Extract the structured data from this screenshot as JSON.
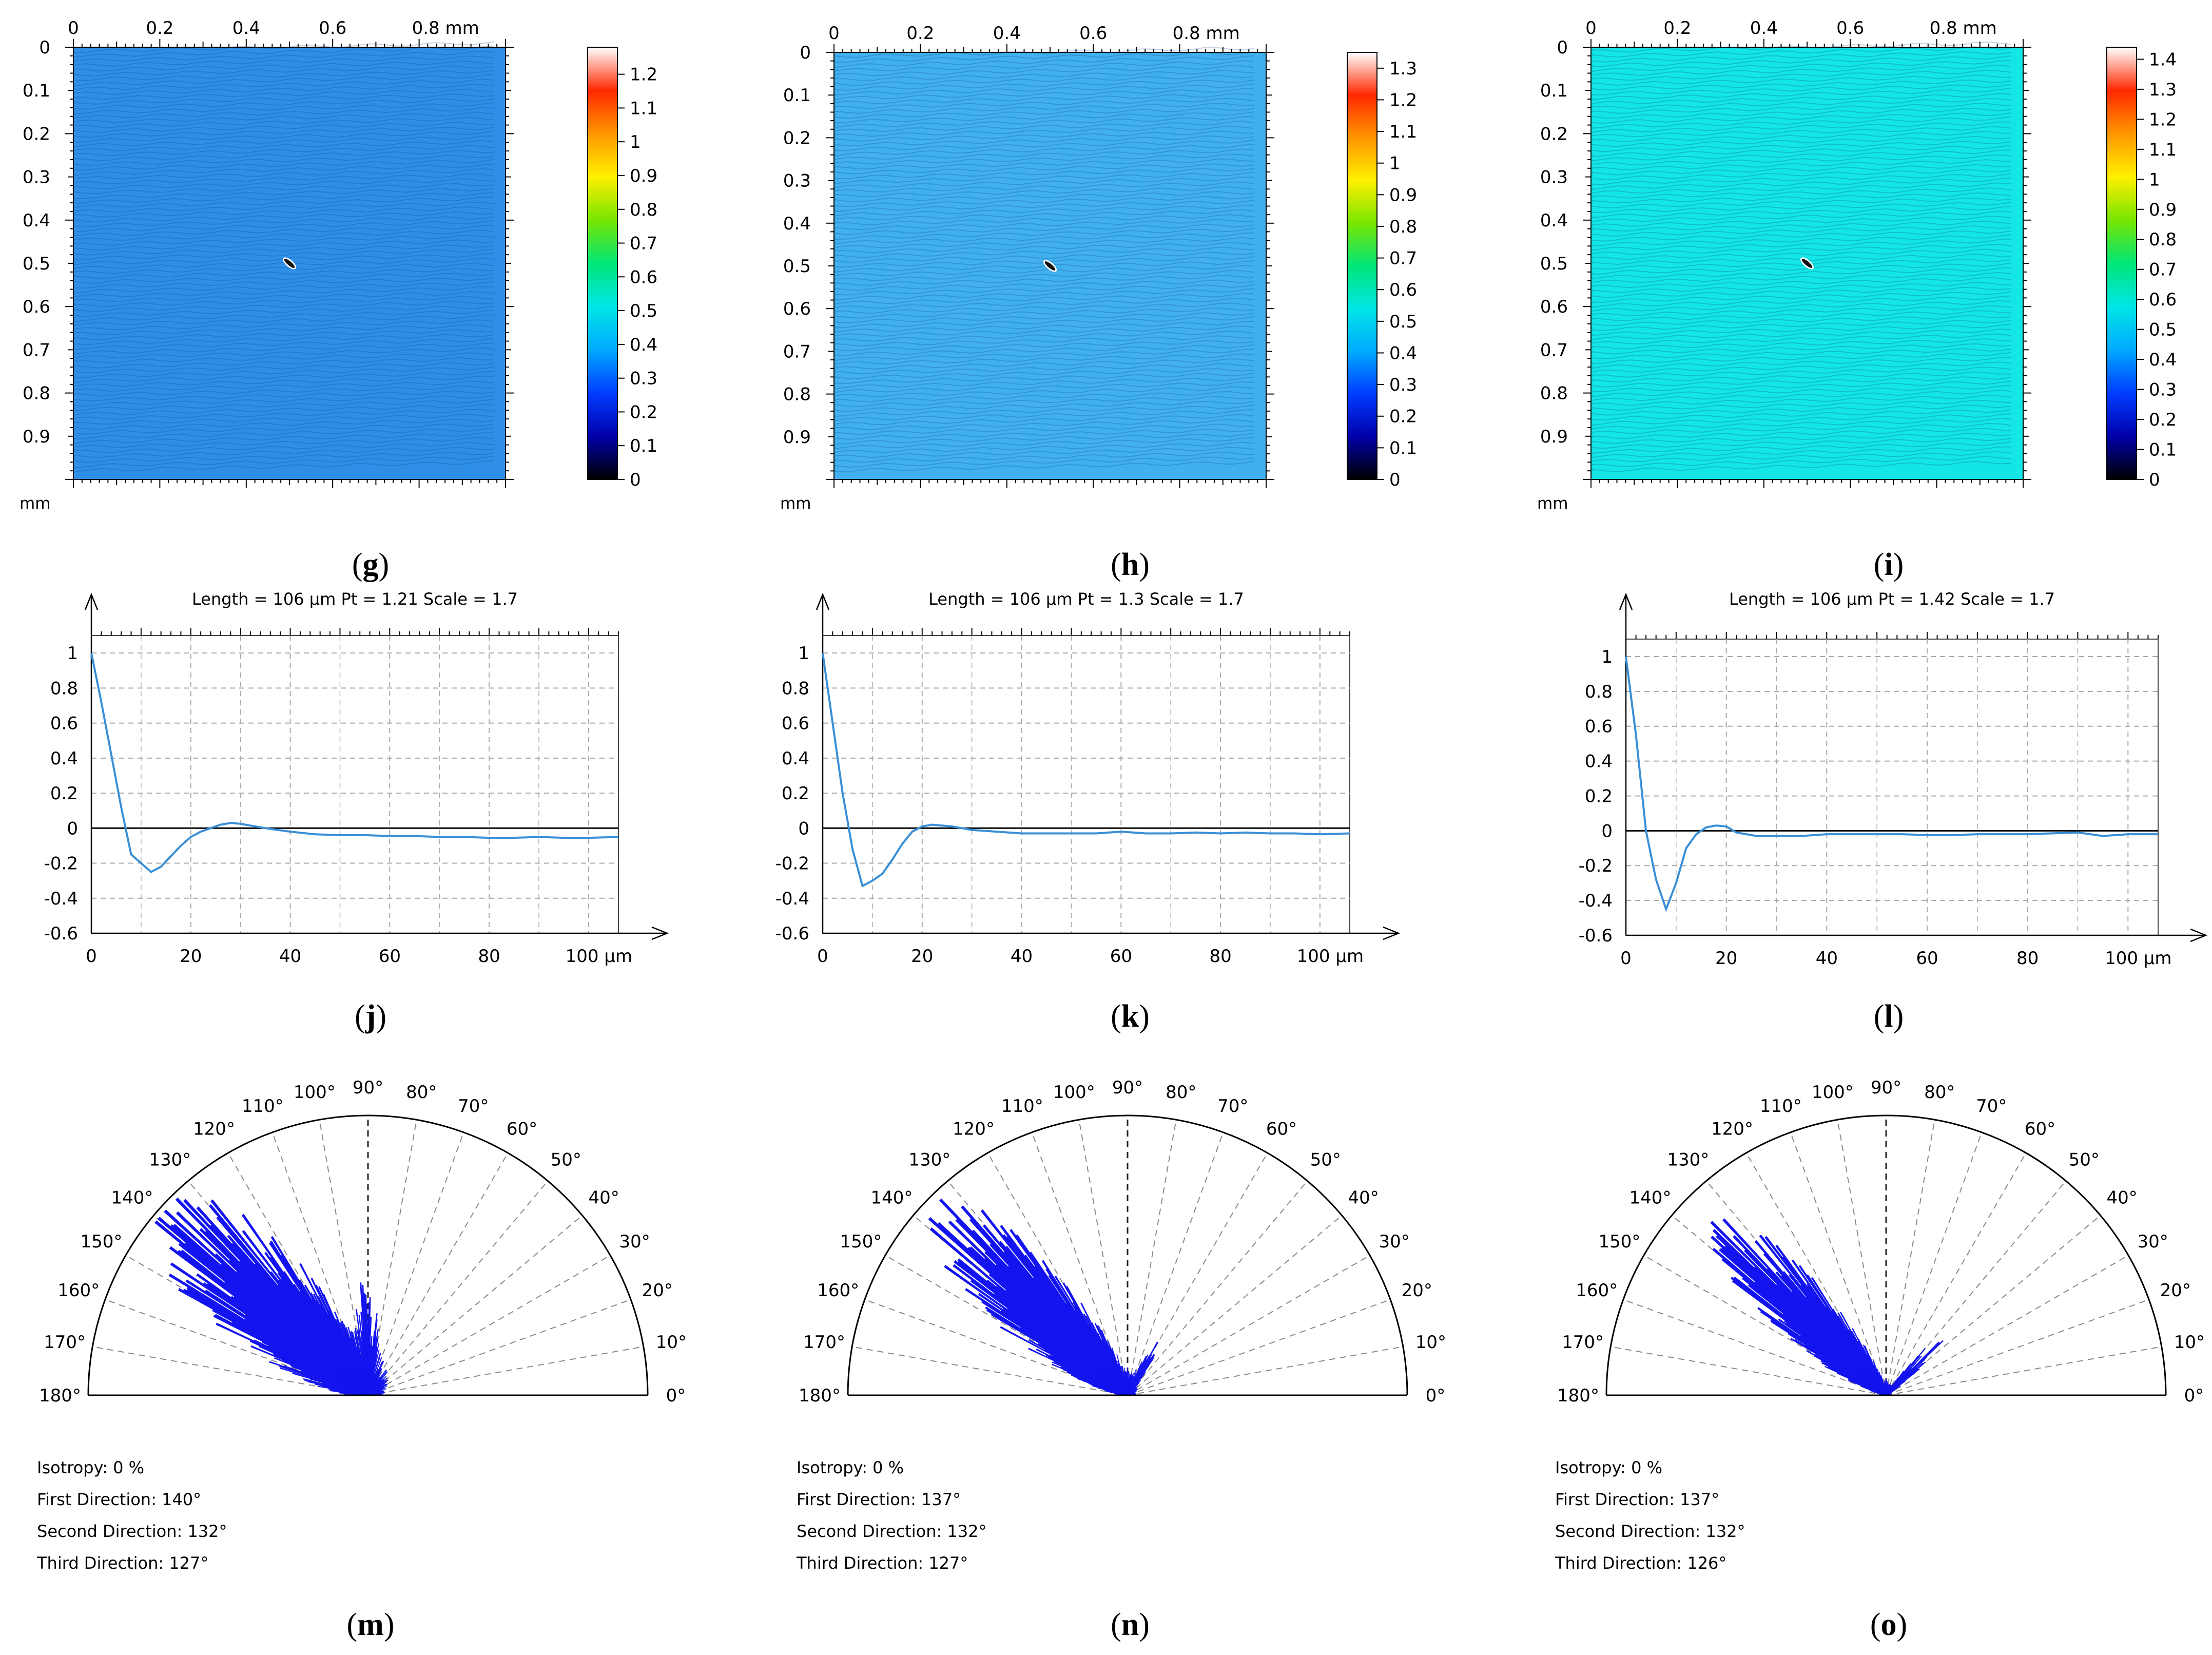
{
  "figure": {
    "captions": [
      "(g)",
      "(h)",
      "(i)",
      "(j)",
      "(k)",
      "(l)",
      "(m)",
      "(n)",
      "(o)"
    ],
    "caption_letters": [
      "g",
      "h",
      "i",
      "j",
      "k",
      "l",
      "m",
      "n",
      "o"
    ]
  },
  "colors": {
    "map_h": "#40b0ee",
    "map_i": "#14e6e6",
    "map_g": "#2f8fe6",
    "profile_line": "#3a8fd6",
    "rose_fill": "#1414f0",
    "grid": "#a8a8a8"
  },
  "chart_data": [
    {
      "type": "heatmap",
      "panel": "g",
      "x_ticks": [
        "0",
        "0.2",
        "0.4",
        "0.6",
        "0.8 mm"
      ],
      "y_ticks": [
        "0",
        "0.1",
        "0.2",
        "0.3",
        "0.4",
        "0.5",
        "0.6",
        "0.7",
        "0.8",
        "0.9"
      ],
      "y_unit": "mm",
      "xlim": [
        0,
        1
      ],
      "ylim": [
        0,
        1
      ],
      "feature_center": [
        0.5,
        0.5
      ],
      "colorbar_ticks": [
        "0",
        "0.1",
        "0.2",
        "0.3",
        "0.4",
        "0.5",
        "0.6",
        "0.7",
        "0.8",
        "0.9",
        "1",
        "1.1",
        "1.2"
      ],
      "colorbar_values": [
        0,
        0.1,
        0.2,
        0.3,
        0.4,
        0.5,
        0.6,
        0.7,
        0.8,
        0.9,
        1,
        1.1,
        1.2
      ],
      "colorbar_max": 1.28,
      "background_value": 0.33
    },
    {
      "type": "heatmap",
      "panel": "h",
      "x_ticks": [
        "0",
        "0.2",
        "0.4",
        "0.6",
        "0.8 mm"
      ],
      "y_ticks": [
        "0",
        "0.1",
        "0.2",
        "0.3",
        "0.4",
        "0.5",
        "0.6",
        "0.7",
        "0.8",
        "0.9"
      ],
      "y_unit": "mm",
      "xlim": [
        0,
        1
      ],
      "ylim": [
        0,
        1
      ],
      "feature_center": [
        0.5,
        0.5
      ],
      "colorbar_ticks": [
        "0",
        "0.1",
        "0.2",
        "0.3",
        "0.4",
        "0.5",
        "0.6",
        "0.7",
        "0.8",
        "0.9",
        "1",
        "1.1",
        "1.2",
        "1.3"
      ],
      "colorbar_values": [
        0,
        0.1,
        0.2,
        0.3,
        0.4,
        0.5,
        0.6,
        0.7,
        0.8,
        0.9,
        1,
        1.1,
        1.2,
        1.3
      ],
      "colorbar_max": 1.35,
      "background_value": 0.36
    },
    {
      "type": "heatmap",
      "panel": "i",
      "x_ticks": [
        "0",
        "0.2",
        "0.4",
        "0.6",
        "0.8 mm"
      ],
      "y_ticks": [
        "0",
        "0.1",
        "0.2",
        "0.3",
        "0.4",
        "0.5",
        "0.6",
        "0.7",
        "0.8",
        "0.9"
      ],
      "y_unit": "mm",
      "xlim": [
        0,
        1
      ],
      "ylim": [
        0,
        1
      ],
      "feature_center": [
        0.5,
        0.5
      ],
      "colorbar_ticks": [
        "0",
        "0.1",
        "0.2",
        "0.3",
        "0.4",
        "0.5",
        "0.6",
        "0.7",
        "0.8",
        "0.9",
        "1",
        "1.1",
        "1.2",
        "1.3",
        "1.4"
      ],
      "colorbar_values": [
        0,
        0.1,
        0.2,
        0.3,
        0.4,
        0.5,
        0.6,
        0.7,
        0.8,
        0.9,
        1,
        1.1,
        1.2,
        1.3,
        1.4
      ],
      "colorbar_max": 1.44,
      "background_value": 0.42
    },
    {
      "type": "line",
      "panel": "j",
      "header": "Length = 106 µm   Pt = 1.21    Scale = 1.7",
      "x_ticks": [
        "0",
        "20",
        "40",
        "60",
        "80",
        "100 µm"
      ],
      "x_tick_values": [
        0,
        20,
        40,
        60,
        80,
        100
      ],
      "y_ticks": [
        "1",
        "0.8",
        "0.6",
        "0.4",
        "0.2",
        "0",
        "-0.2",
        "-0.4",
        "-0.6"
      ],
      "y_tick_values": [
        1,
        0.8,
        0.6,
        0.4,
        0.2,
        0,
        -0.2,
        -0.4,
        -0.6
      ],
      "xlim": [
        0,
        106
      ],
      "ylim": [
        -0.6,
        1.1
      ],
      "x": [
        0,
        2,
        4,
        6,
        8,
        10,
        12,
        14,
        16,
        18,
        20,
        22,
        24,
        26,
        28,
        30,
        32,
        35,
        40,
        45,
        50,
        55,
        60,
        65,
        70,
        75,
        80,
        85,
        90,
        95,
        100,
        106
      ],
      "y": [
        1,
        0.72,
        0.42,
        0.12,
        -0.15,
        -0.2,
        -0.25,
        -0.22,
        -0.16,
        -0.1,
        -0.05,
        -0.02,
        0.0,
        0.02,
        0.03,
        0.025,
        0.015,
        0.0,
        -0.02,
        -0.035,
        -0.04,
        -0.04,
        -0.045,
        -0.045,
        -0.05,
        -0.05,
        -0.055,
        -0.055,
        -0.05,
        -0.055,
        -0.055,
        -0.05
      ]
    },
    {
      "type": "line",
      "panel": "k",
      "header": "Length = 106 µm   Pt = 1.3    Scale = 1.7",
      "x_ticks": [
        "0",
        "20",
        "40",
        "60",
        "80",
        "100 µm"
      ],
      "x_tick_values": [
        0,
        20,
        40,
        60,
        80,
        100
      ],
      "y_ticks": [
        "1",
        "0.8",
        "0.6",
        "0.4",
        "0.2",
        "0",
        "-0.2",
        "-0.4",
        "-0.6"
      ],
      "y_tick_values": [
        1,
        0.8,
        0.6,
        0.4,
        0.2,
        0,
        -0.2,
        -0.4,
        -0.6
      ],
      "xlim": [
        0,
        106
      ],
      "ylim": [
        -0.6,
        1.1
      ],
      "x": [
        0,
        2,
        4,
        6,
        8,
        10,
        12,
        14,
        16,
        18,
        20,
        22,
        24,
        26,
        28,
        30,
        35,
        40,
        45,
        50,
        55,
        60,
        65,
        70,
        75,
        80,
        85,
        90,
        95,
        100,
        106
      ],
      "y": [
        1,
        0.6,
        0.2,
        -0.12,
        -0.33,
        -0.3,
        -0.26,
        -0.18,
        -0.09,
        -0.02,
        0.01,
        0.02,
        0.015,
        0.01,
        0.0,
        -0.01,
        -0.02,
        -0.03,
        -0.03,
        -0.03,
        -0.03,
        -0.02,
        -0.03,
        -0.03,
        -0.025,
        -0.03,
        -0.025,
        -0.03,
        -0.03,
        -0.035,
        -0.03
      ]
    },
    {
      "type": "line",
      "panel": "l",
      "header": "Length = 106 µm   Pt = 1.42    Scale = 1.7",
      "x_ticks": [
        "0",
        "20",
        "40",
        "60",
        "80",
        "100 µm"
      ],
      "x_tick_values": [
        0,
        20,
        40,
        60,
        80,
        100
      ],
      "y_ticks": [
        "1",
        "0.8",
        "0.6",
        "0.4",
        "0.2",
        "0",
        "-0.2",
        "-0.4",
        "-0.6"
      ],
      "y_tick_values": [
        1,
        0.8,
        0.6,
        0.4,
        0.2,
        0,
        -0.2,
        -0.4,
        -0.6
      ],
      "xlim": [
        0,
        106
      ],
      "ylim": [
        -0.6,
        1.1
      ],
      "x": [
        0,
        2,
        4,
        6,
        8,
        10,
        12,
        14,
        16,
        18,
        20,
        22,
        24,
        26,
        28,
        30,
        35,
        40,
        45,
        50,
        55,
        60,
        65,
        70,
        75,
        80,
        85,
        90,
        95,
        100,
        106
      ],
      "y": [
        1,
        0.55,
        0.0,
        -0.28,
        -0.45,
        -0.3,
        -0.1,
        -0.02,
        0.02,
        0.03,
        0.025,
        -0.01,
        -0.02,
        -0.03,
        -0.03,
        -0.03,
        -0.03,
        -0.02,
        -0.02,
        -0.02,
        -0.02,
        -0.025,
        -0.025,
        -0.02,
        -0.02,
        -0.02,
        -0.015,
        -0.01,
        -0.03,
        -0.02,
        -0.02
      ]
    },
    {
      "type": "polar",
      "panel": "m",
      "angle_ticks": [
        "0°",
        "10°",
        "20°",
        "30°",
        "40°",
        "50°",
        "60°",
        "70°",
        "80°",
        "90°",
        "100°",
        "110°",
        "120°",
        "130°",
        "140°",
        "150°",
        "160°",
        "170°",
        "180°"
      ],
      "angle_values": [
        0,
        10,
        20,
        30,
        40,
        50,
        60,
        70,
        80,
        90,
        100,
        110,
        120,
        130,
        140,
        150,
        160,
        170,
        180
      ],
      "lobe_center_deg": 138,
      "lobe_width_deg": 16,
      "lobe_peak": 1.0,
      "side_peak_deg": 90,
      "side_peak": 0.35,
      "base_level": 0.2,
      "stats": [
        {
          "label": "Isotropy:",
          "value": "0 %"
        },
        {
          "label": "First Direction:",
          "value": "140°"
        },
        {
          "label": "Second Direction:",
          "value": "132°"
        },
        {
          "label": "Third Direction:",
          "value": "127°"
        }
      ]
    },
    {
      "type": "polar",
      "panel": "n",
      "angle_ticks": [
        "0°",
        "10°",
        "20°",
        "30°",
        "40°",
        "50°",
        "60°",
        "70°",
        "80°",
        "90°",
        "100°",
        "110°",
        "120°",
        "130°",
        "140°",
        "150°",
        "160°",
        "170°",
        "180°"
      ],
      "angle_values": [
        0,
        10,
        20,
        30,
        40,
        50,
        60,
        70,
        80,
        90,
        100,
        110,
        120,
        130,
        140,
        150,
        160,
        170,
        180
      ],
      "lobe_center_deg": 136,
      "lobe_width_deg": 14,
      "lobe_peak": 0.97,
      "side_peak_deg": 60,
      "side_peak": 0.22,
      "base_level": 0.1,
      "stats": [
        {
          "label": "Isotropy:",
          "value": "0 %"
        },
        {
          "label": "First Direction:",
          "value": "137°"
        },
        {
          "label": "Second Direction:",
          "value": "132°"
        },
        {
          "label": "Third Direction:",
          "value": "127°"
        }
      ]
    },
    {
      "type": "polar",
      "panel": "o",
      "angle_ticks": [
        "0°",
        "10°",
        "20°",
        "30°",
        "40°",
        "50°",
        "60°",
        "70°",
        "80°",
        "90°",
        "100°",
        "110°",
        "120°",
        "130°",
        "140°",
        "150°",
        "160°",
        "170°",
        "180°"
      ],
      "angle_values": [
        0,
        10,
        20,
        30,
        40,
        50,
        60,
        70,
        80,
        90,
        100,
        110,
        120,
        130,
        140,
        150,
        160,
        170,
        180
      ],
      "lobe_center_deg": 135,
      "lobe_width_deg": 12,
      "lobe_peak": 0.9,
      "side_peak_deg": 45,
      "side_peak": 0.33,
      "base_level": 0.06,
      "stats": [
        {
          "label": "Isotropy:",
          "value": "0 %"
        },
        {
          "label": "First Direction:",
          "value": "137°"
        },
        {
          "label": "Second Direction:",
          "value": "132°"
        },
        {
          "label": "Third Direction:",
          "value": "126°"
        }
      ]
    }
  ]
}
